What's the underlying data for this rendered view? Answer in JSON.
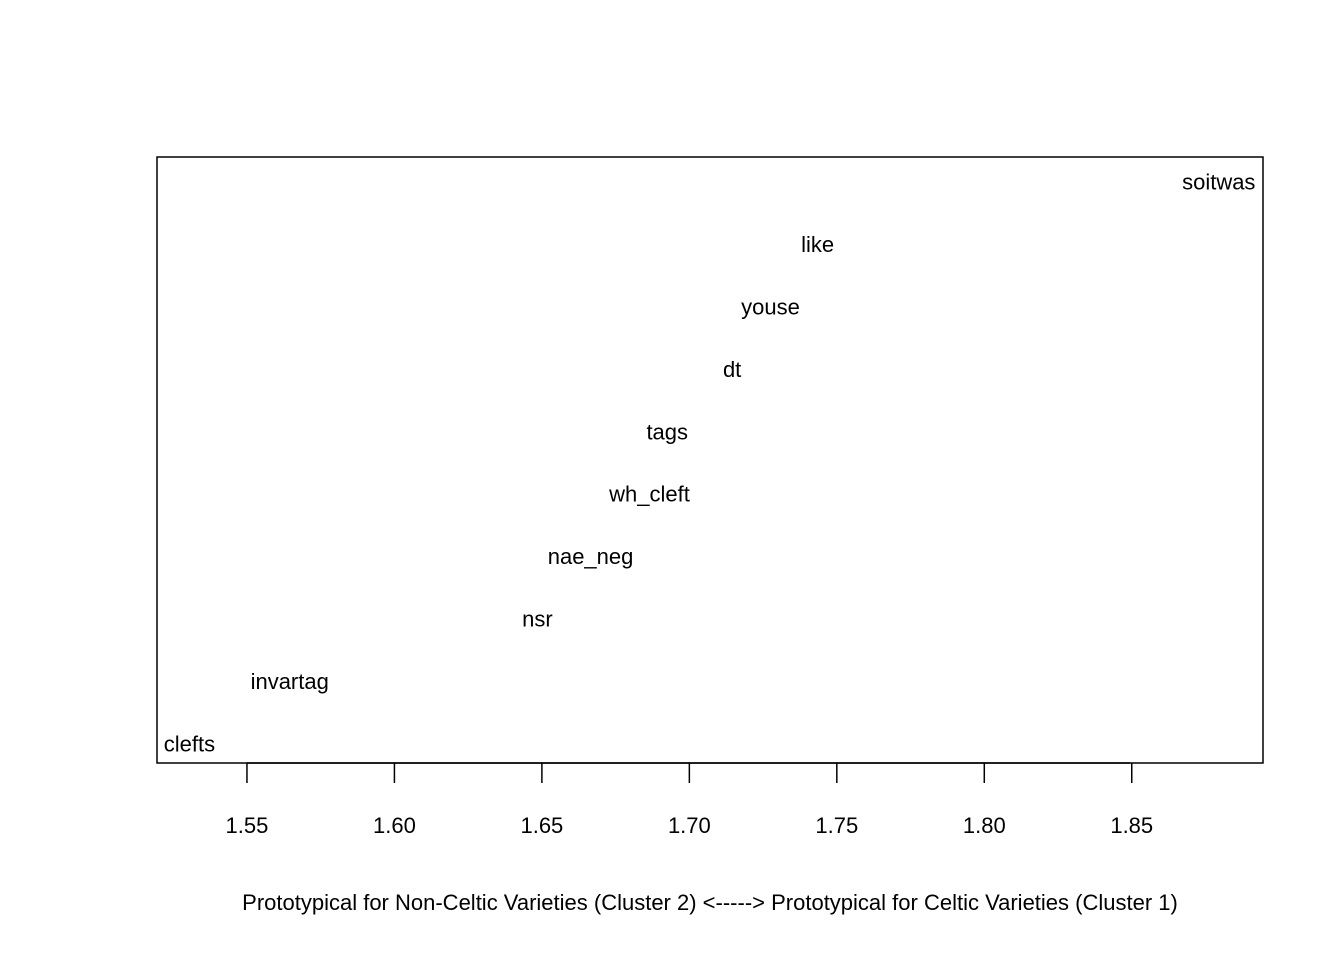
{
  "chart_data": {
    "type": "scatter",
    "title": "",
    "xlabel": "Prototypical for Non-Celtic Varieties (Cluster 2) <-----> Prototypical for Celtic Varieties (Cluster 1)",
    "ylabel": "",
    "xlim": [
      1.5195,
      1.8945
    ],
    "x_ticks": [
      1.55,
      1.6,
      1.65,
      1.7,
      1.75,
      1.8,
      1.85
    ],
    "x_tick_labels": [
      "1.55",
      "1.60",
      "1.65",
      "1.70",
      "1.75",
      "1.80",
      "1.85"
    ],
    "y_axis_shown": false,
    "grid": false,
    "points": [
      {
        "label": "clefts",
        "x": 1.5305,
        "rank": 1
      },
      {
        "label": "invartag",
        "x": 1.5645,
        "rank": 2
      },
      {
        "label": "nsr",
        "x": 1.6485,
        "rank": 3
      },
      {
        "label": "nae_neg",
        "x": 1.6665,
        "rank": 4
      },
      {
        "label": "wh_cleft",
        "x": 1.6865,
        "rank": 5
      },
      {
        "label": "tags",
        "x": 1.6925,
        "rank": 6
      },
      {
        "label": "dt",
        "x": 1.7145,
        "rank": 7
      },
      {
        "label": "youse",
        "x": 1.7275,
        "rank": 8
      },
      {
        "label": "like",
        "x": 1.7435,
        "rank": 9
      },
      {
        "label": "soitwas",
        "x": 1.8795,
        "rank": 10
      }
    ]
  }
}
